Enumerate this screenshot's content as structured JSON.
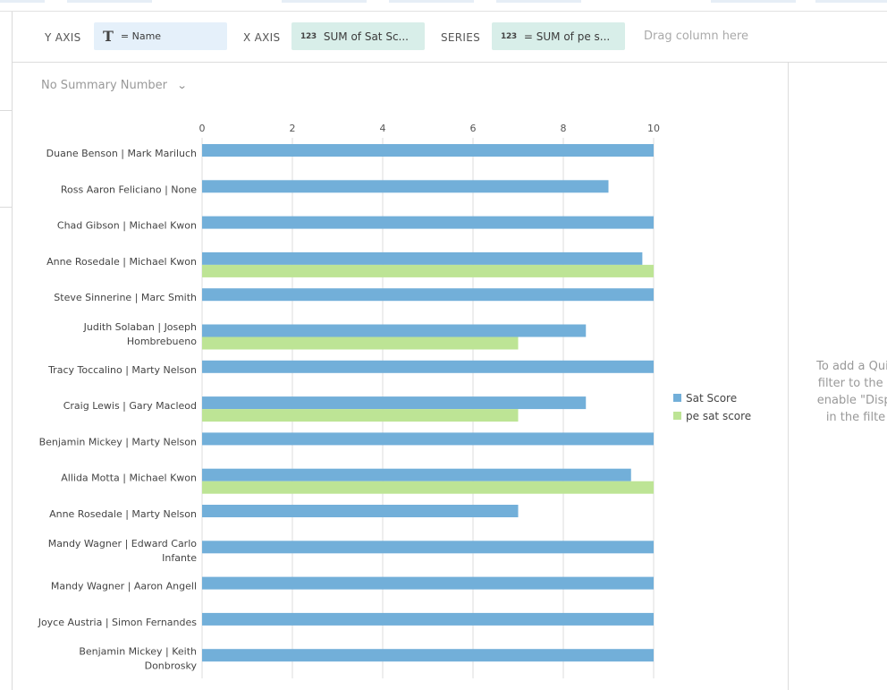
{
  "toolbar": {
    "y_axis_label": "Y AXIS",
    "y_axis_field": "= Name",
    "y_axis_icon": "text-type-icon",
    "x_axis_label": "X AXIS",
    "x_axis_field": "SUM of Sat Sc...",
    "x_axis_icon": "numeric-type-icon",
    "series_label": "SERIES",
    "series_field": "= SUM of pe s...",
    "series_icon": "numeric-type-icon",
    "drag_hint": "Drag column here",
    "text_glyph": "T",
    "number_glyph": "123"
  },
  "summary": {
    "label": "No Summary Number"
  },
  "side_panel": {
    "lines": [
      "To add a Quic",
      "filter to the F",
      "enable \"Displ",
      "in the filte"
    ]
  },
  "colors": {
    "sat": "#72afd9",
    "pe": "#bde495",
    "grid": "#dddddd"
  },
  "chart_data": {
    "type": "bar",
    "orientation": "horizontal",
    "xlim": [
      0,
      10
    ],
    "x_ticks": [
      0,
      2,
      4,
      6,
      8,
      10
    ],
    "legend_position": "right",
    "grid": true,
    "categories": [
      [
        "Duane Benson | Mark Mariluch"
      ],
      [
        "Ross Aaron Feliciano | None"
      ],
      [
        "Chad Gibson | Michael Kwon"
      ],
      [
        "Anne Rosedale | Michael Kwon"
      ],
      [
        "Steve Sinnerine | Marc Smith"
      ],
      [
        "Judith Solaban | Joseph",
        "Hombrebueno"
      ],
      [
        "Tracy Toccalino | Marty Nelson"
      ],
      [
        "Craig Lewis | Gary Macleod"
      ],
      [
        "Benjamin Mickey | Marty Nelson"
      ],
      [
        "Allida Motta | Michael Kwon"
      ],
      [
        "Anne Rosedale | Marty Nelson"
      ],
      [
        "Mandy Wagner | Edward Carlo",
        "Infante"
      ],
      [
        "Mandy Wagner | Aaron Angell"
      ],
      [
        "Joyce Austria | Simon Fernandes"
      ],
      [
        "Benjamin Mickey | Keith",
        "Donbrosky"
      ]
    ],
    "series": [
      {
        "name": "Sat Score",
        "values": [
          10,
          9,
          10,
          9.75,
          10,
          8.5,
          10,
          8.5,
          10,
          9.5,
          7,
          10,
          10,
          10,
          10
        ]
      },
      {
        "name": "pe sat score",
        "values": [
          null,
          null,
          null,
          10,
          null,
          7,
          null,
          7,
          null,
          10,
          null,
          null,
          null,
          null,
          null
        ]
      }
    ]
  }
}
